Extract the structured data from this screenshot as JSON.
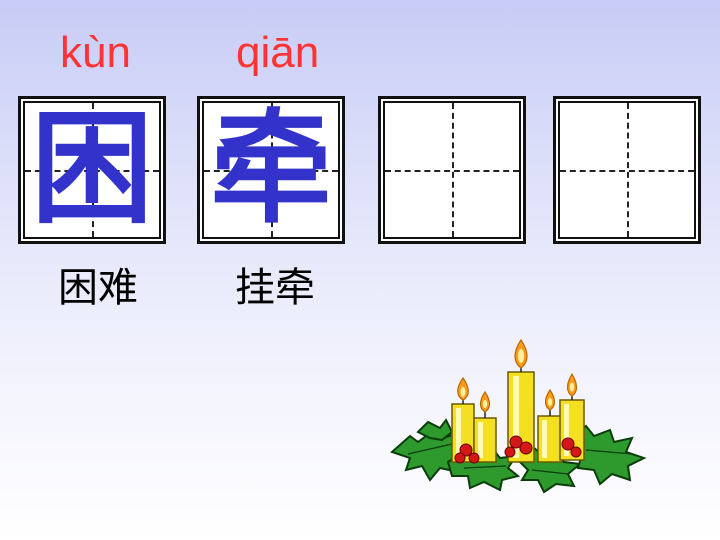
{
  "pinyin": [
    "kùn",
    "qiān"
  ],
  "characters": [
    "困",
    "牵",
    "",
    ""
  ],
  "words": [
    "困难",
    "挂牵"
  ],
  "colors": {
    "pinyin": "#ff3333",
    "character": "#3333cc"
  },
  "decoration": {
    "icon": "candles-with-holly-icon"
  }
}
